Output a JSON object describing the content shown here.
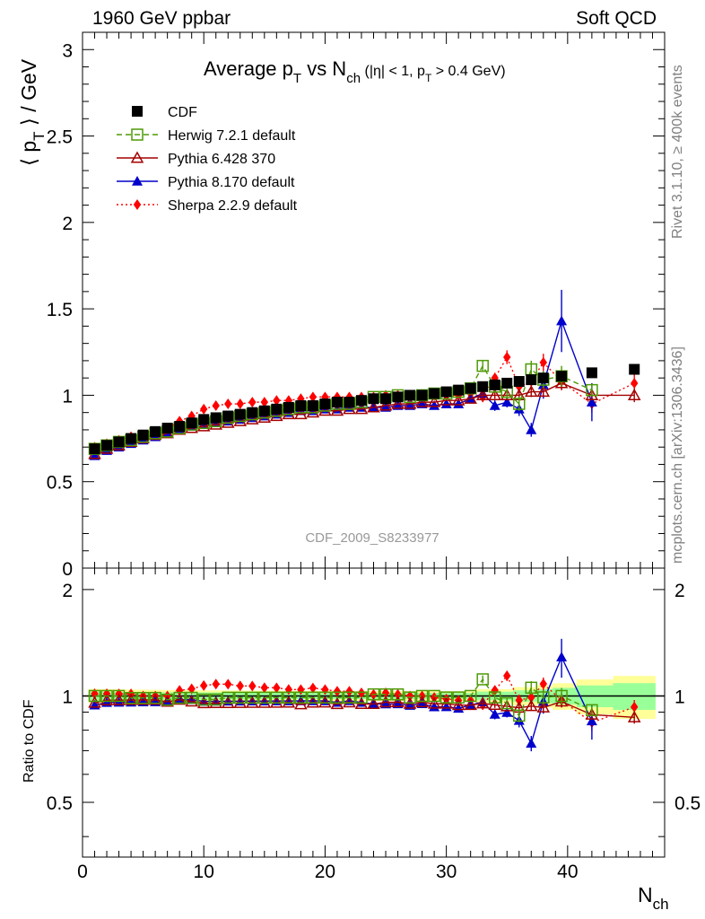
{
  "header": {
    "left": "1960 GeV ppbar",
    "right": "Soft QCD"
  },
  "side_labels": {
    "rivet": "Rivet 3.1.10, ≥ 400k events",
    "mcplots": "mcplots.cern.ch [arXiv:1306.3436]"
  },
  "chart_data": {
    "type": "scatter",
    "title": "Average p_T vs N_ch (|η| < 1, p_T > 0.4 GeV)",
    "watermark": "CDF_2009_S8233977",
    "xlabel": "N_ch",
    "ylabel": "⟨ p_T ⟩ / GeV",
    "ratio_ylabel": "Ratio to CDF",
    "xlim": [
      0,
      48
    ],
    "ylim": [
      0,
      3.1
    ],
    "ratio_ylim": [
      0.35,
      2.3
    ],
    "xticks": [
      "0",
      "10",
      "20",
      "30",
      "40"
    ],
    "yticks": [
      "0",
      "0.5",
      "1",
      "1.5",
      "2",
      "2.5",
      "3"
    ],
    "ratio_yticks": [
      "0.5",
      "1",
      "2"
    ],
    "legend": "top-left",
    "x": [
      1,
      2,
      3,
      4,
      5,
      6,
      7,
      8,
      9,
      10,
      11,
      12,
      13,
      14,
      15,
      16,
      17,
      18,
      19,
      20,
      21,
      22,
      23,
      24,
      25,
      26,
      27,
      28,
      29,
      30,
      31,
      32,
      33,
      34,
      35,
      36,
      37,
      38,
      39.5,
      42,
      45.5
    ],
    "series": [
      {
        "name": "CDF",
        "color": "#000000",
        "marker": "square-filled",
        "line": "none",
        "values": [
          0.69,
          0.71,
          0.73,
          0.75,
          0.77,
          0.79,
          0.81,
          0.82,
          0.84,
          0.86,
          0.87,
          0.88,
          0.89,
          0.9,
          0.91,
          0.92,
          0.93,
          0.94,
          0.94,
          0.95,
          0.96,
          0.96,
          0.97,
          0.98,
          0.98,
          0.99,
          1.0,
          1.0,
          1.01,
          1.02,
          1.03,
          1.04,
          1.05,
          1.06,
          1.07,
          1.08,
          1.09,
          1.1,
          1.11,
          1.13,
          1.15
        ],
        "band": [
          0.02,
          0.02,
          0.02,
          0.02,
          0.02,
          0.02,
          0.02,
          0.02,
          0.02,
          0.02,
          0.02,
          0.02,
          0.02,
          0.02,
          0.02,
          0.02,
          0.02,
          0.02,
          0.02,
          0.02,
          0.02,
          0.02,
          0.02,
          0.02,
          0.02,
          0.02,
          0.02,
          0.02,
          0.02,
          0.02,
          0.02,
          0.02,
          0.03,
          0.03,
          0.03,
          0.04,
          0.04,
          0.05,
          0.06,
          0.08,
          0.1
        ]
      },
      {
        "name": "Herwig 7.2.1 default",
        "color": "#4e9a06",
        "marker": "square-open",
        "line": "dashed",
        "values": [
          0.69,
          0.71,
          0.73,
          0.74,
          0.76,
          0.78,
          0.79,
          0.81,
          0.83,
          0.84,
          0.85,
          0.87,
          0.88,
          0.89,
          0.9,
          0.91,
          0.92,
          0.93,
          0.93,
          0.94,
          0.95,
          0.95,
          0.96,
          0.99,
          0.99,
          1.0,
          0.99,
          1.0,
          1.01,
          1.01,
          1.02,
          1.04,
          1.17,
          1.05,
          1.02,
          0.95,
          1.15,
          1.09,
          1.11,
          1.03,
          null
        ],
        "err": [
          0,
          0,
          0,
          0,
          0,
          0,
          0,
          0,
          0,
          0,
          0,
          0,
          0,
          0,
          0,
          0,
          0,
          0,
          0,
          0,
          0,
          0,
          0,
          0,
          0,
          0,
          0,
          0,
          0,
          0,
          0,
          0.01,
          0.03,
          0.03,
          0.04,
          0.04,
          0.05,
          0.05,
          0.06,
          0.03,
          0
        ]
      },
      {
        "name": "Pythia 6.428 370",
        "color": "#a40000",
        "marker": "triangle-open",
        "line": "solid",
        "values": [
          0.66,
          0.69,
          0.71,
          0.73,
          0.75,
          0.77,
          0.78,
          0.8,
          0.81,
          0.82,
          0.83,
          0.84,
          0.85,
          0.86,
          0.87,
          0.88,
          0.89,
          0.89,
          0.9,
          0.91,
          0.91,
          0.92,
          0.92,
          0.93,
          0.94,
          0.95,
          0.95,
          0.96,
          0.96,
          0.97,
          0.97,
          0.98,
          1.0,
          1.0,
          1.0,
          1.0,
          1.02,
          1.02,
          1.07,
          1.0,
          1.0
        ],
        "err": [
          0,
          0,
          0,
          0,
          0,
          0,
          0,
          0,
          0,
          0,
          0,
          0,
          0,
          0,
          0,
          0,
          0,
          0,
          0,
          0,
          0,
          0,
          0,
          0,
          0,
          0,
          0,
          0,
          0,
          0,
          0,
          0,
          0.02,
          0.02,
          0.02,
          0.03,
          0.03,
          0.03,
          0.04,
          0.03,
          0.04
        ]
      },
      {
        "name": "Pythia 8.170 default",
        "color": "#0000cc",
        "marker": "triangle-filled",
        "line": "solid",
        "values": [
          0.65,
          0.68,
          0.7,
          0.72,
          0.74,
          0.76,
          0.78,
          0.8,
          0.82,
          0.83,
          0.84,
          0.85,
          0.86,
          0.87,
          0.88,
          0.89,
          0.9,
          0.91,
          0.91,
          0.92,
          0.92,
          0.93,
          0.93,
          0.93,
          0.93,
          0.94,
          0.94,
          0.95,
          0.94,
          0.95,
          0.95,
          0.98,
          1.01,
          0.94,
          0.96,
          0.92,
          0.8,
          1.06,
          1.43,
          0.96,
          null
        ],
        "err": [
          0,
          0,
          0,
          0,
          0,
          0,
          0,
          0,
          0,
          0,
          0,
          0,
          0,
          0,
          0,
          0,
          0,
          0,
          0,
          0,
          0,
          0,
          0,
          0,
          0,
          0,
          0,
          0,
          0,
          0,
          0,
          0,
          0.03,
          0.03,
          0.03,
          0.04,
          0.04,
          0.08,
          0.18,
          0.11,
          0
        ]
      },
      {
        "name": "Sherpa 2.2.9 default",
        "color": "#ff0000",
        "marker": "diamond-filled",
        "line": "dotted",
        "values": [
          0.7,
          0.72,
          0.74,
          0.76,
          0.77,
          0.79,
          0.81,
          0.85,
          0.88,
          0.92,
          0.94,
          0.95,
          0.95,
          0.96,
          0.96,
          0.97,
          0.97,
          0.98,
          0.99,
          0.99,
          0.99,
          0.99,
          0.99,
          0.99,
          1.0,
          1.0,
          1.0,
          1.0,
          1.0,
          1.0,
          1.0,
          1.01,
          0.99,
          1.1,
          1.22,
          1.05,
          1.08,
          1.19,
          1.08,
          0.95,
          1.07
        ],
        "err": [
          0,
          0,
          0,
          0,
          0,
          0,
          0,
          0,
          0,
          0,
          0,
          0,
          0,
          0,
          0,
          0,
          0,
          0,
          0,
          0,
          0,
          0,
          0,
          0,
          0,
          0,
          0,
          0,
          0,
          0,
          0,
          0,
          0.03,
          0.03,
          0.04,
          0.04,
          0.05,
          0.05,
          0.05,
          0.05,
          0.05
        ]
      }
    ]
  }
}
